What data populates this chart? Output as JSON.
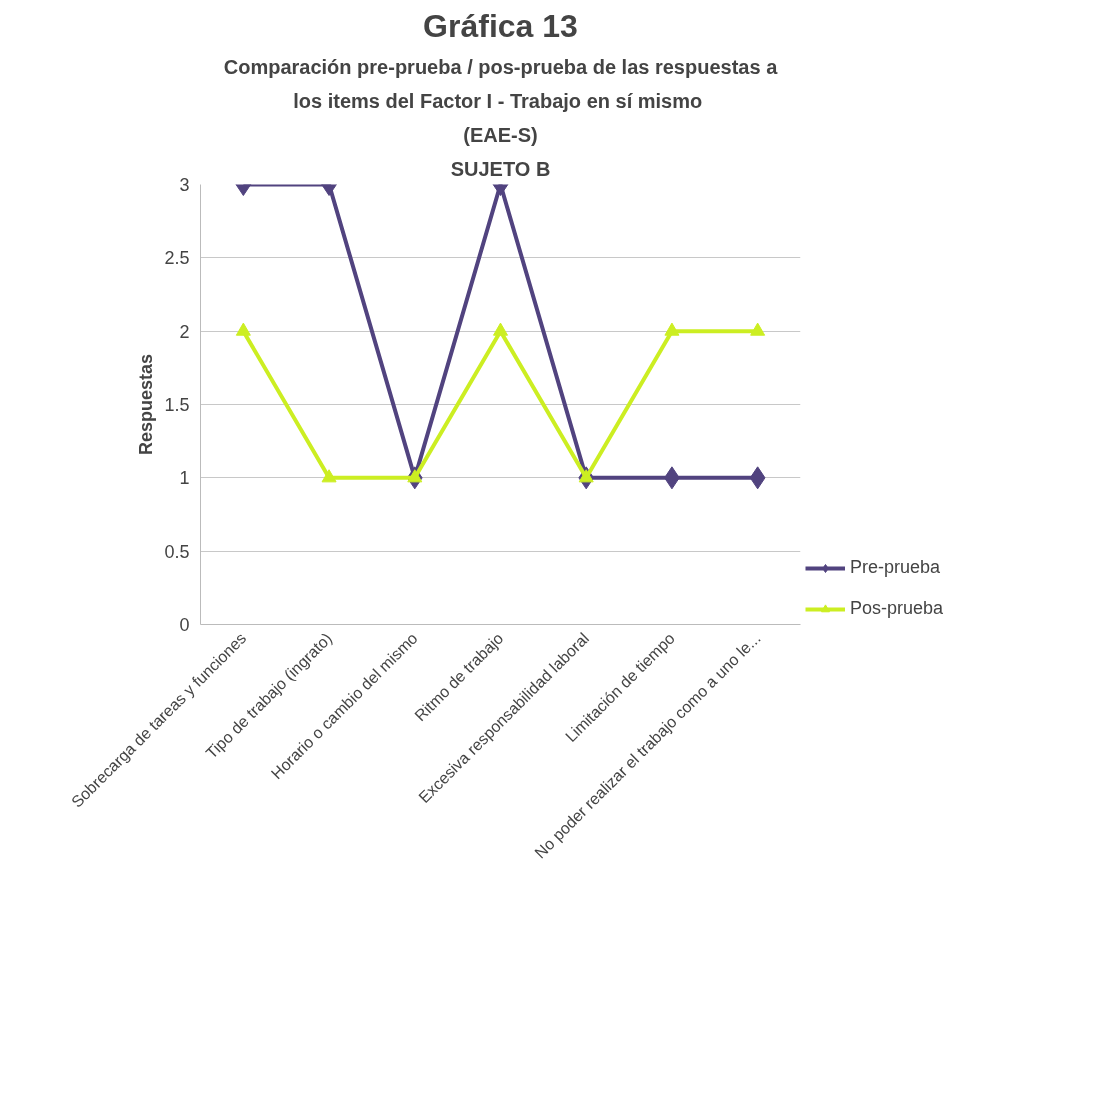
{
  "chart_data": {
    "type": "line",
    "title": "Gráfica 13",
    "subtitle": [
      "Comparación pre-prueba / pos-prueba de las respuestas a",
      "los items del Factor I - Trabajo  en sí mismo",
      "(EAE-S)",
      "SUJETO B"
    ],
    "ylabel": "Respuestas",
    "categories": [
      "Sobrecarga de tareas y funciones",
      "Tipo de trabajo (ingrato)",
      "Horario o cambio del mismo",
      "Ritmo de trabajo",
      "Excesiva responsabilidad laboral",
      "Limitación de tiempo",
      "No poder realizar el trabajo como a uno le..."
    ],
    "series": [
      {
        "name": "Pre-prueba",
        "color": "#51437f",
        "marker": "diamond",
        "values": [
          3,
          3,
          1,
          3,
          1,
          1,
          1
        ]
      },
      {
        "name": "Pos-prueba",
        "color": "#ccee22",
        "marker": "triangle",
        "values": [
          2,
          1,
          1,
          2,
          1,
          2,
          2
        ]
      }
    ],
    "ylim": [
      0,
      3
    ],
    "yticks": [
      0,
      0.5,
      1,
      1.5,
      2,
      2.5,
      3
    ],
    "grid": "y",
    "legend": "right",
    "line_style": "solid"
  }
}
